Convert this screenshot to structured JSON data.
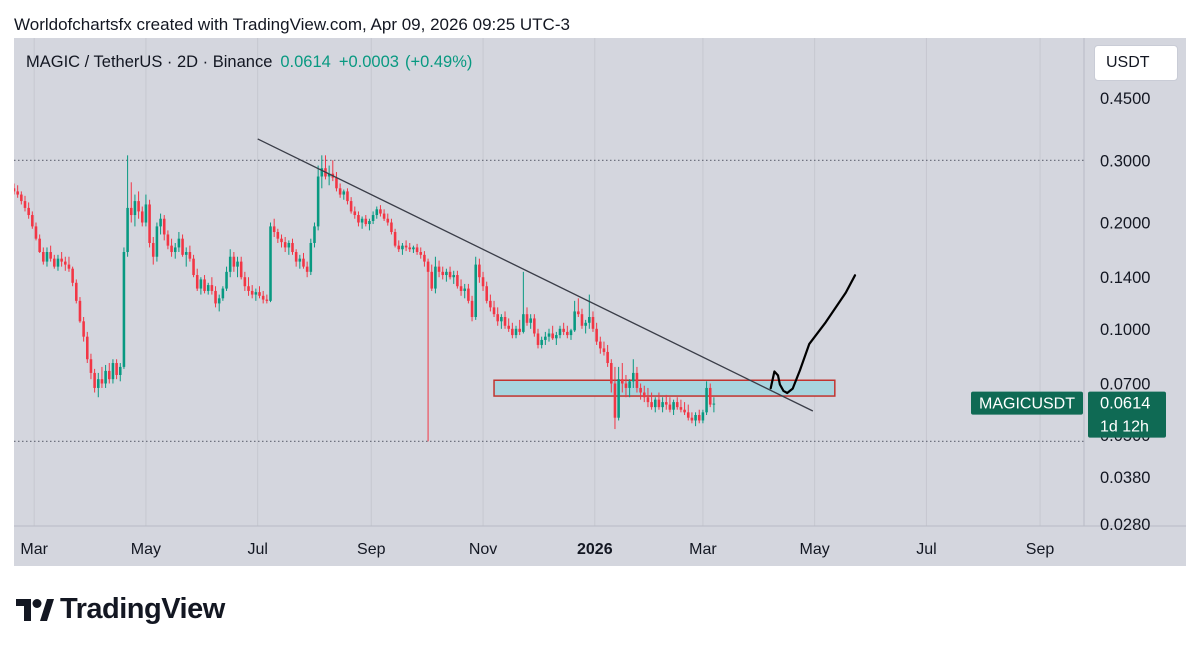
{
  "attribution": "Worldofchartsfx created with TradingView.com, Apr 09, 2026 09:25 UTC-3",
  "legend": {
    "symbol": "MAGIC / TetherUS · 2D · Binance",
    "last": "0.0614",
    "change": "+0.0003",
    "change_pct": "(+0.49%)"
  },
  "currency_button": "USDT",
  "brand": "TradingView",
  "colors": {
    "up": "#089981",
    "down": "#f23645",
    "background": "#d4d6de",
    "zone_fill": "#a8d4de",
    "zone_border": "#c2342f",
    "price_tag": "#0f6a54"
  },
  "chart_data": {
    "type": "candlestick",
    "scale": "log",
    "x_ticks": [
      "Mar",
      "May",
      "Jul",
      "Sep",
      "Nov",
      "2026",
      "Mar",
      "May",
      "Jul",
      "Sep"
    ],
    "y_ticks": [
      "0.4500",
      "0.3000",
      "0.2000",
      "0.1400",
      "0.1000",
      "0.0700",
      "0.0500",
      "0.0380",
      "0.0280"
    ],
    "y_tick_values": [
      0.45,
      0.3,
      0.2,
      0.14,
      0.1,
      0.07,
      0.05,
      0.038,
      0.028
    ],
    "ylim": [
      0.028,
      0.52
    ],
    "xlim": [
      "2025-02-18",
      "2026-09-25"
    ],
    "last_price": {
      "symbol": "MAGICUSDT",
      "value": "0.0614",
      "countdown": "1d 12h"
    },
    "reference_levels": [
      0.3,
      0.048
    ],
    "trendline": {
      "from": [
        "2025-07-01",
        0.345
      ],
      "to": [
        "2026-04-30",
        0.0585
      ]
    },
    "support_zone": {
      "from": "2025-11-07",
      "to": "2026-05-12",
      "low": 0.0645,
      "high": 0.0715
    },
    "projection": [
      [
        "2026-04-07",
        0.0679
      ],
      [
        "2026-04-09",
        0.0757
      ],
      [
        "2026-04-11",
        0.0738
      ],
      [
        "2026-04-12",
        0.0695
      ],
      [
        "2026-04-14",
        0.0667
      ],
      [
        "2026-04-16",
        0.0658
      ],
      [
        "2026-04-19",
        0.0677
      ],
      [
        "2026-04-23",
        0.0764
      ],
      [
        "2026-04-28",
        0.0905
      ],
      [
        "2026-05-07",
        0.1043
      ],
      [
        "2026-05-18",
        0.1266
      ],
      [
        "2026-05-23",
        0.1418
      ]
    ],
    "candles_ohlc_2d": "2025-02-18|0.250,0.258,0.240,0.245;0.245,0.255,0.235,0.240;0.240,0.245,0.225,0.230;0.230,0.238,0.215,0.220;0.220,0.228,0.205,0.210;0.210,0.215,0.192,0.195;0.195,0.200,0.178,0.180;0.180,0.185,0.164,0.165;0.165,0.170,0.152,0.155;0.155,0.170,0.150,0.165;0.165,0.172,0.155,0.158;0.158,0.162,0.148,0.150;0.150,0.162,0.146,0.158;0.158,0.165,0.150,0.155;0.155,0.160,0.146,0.152;0.152,0.160,0.145,0.148;0.148,0.150,0.132,0.135;0.135,0.138,0.118,0.120;0.120,0.123,0.104,0.105;0.105,0.108,0.092,0.095;0.095,0.098,0.080,0.082;0.082,0.085,0.072,0.075;0.075,0.077,0.066,0.068;0.068,0.075,0.064,0.072;0.072,0.078,0.068,0.070;0.070,0.079,0.068,0.076;0.076,0.080,0.070,0.072;0.072,0.082,0.070,0.080;0.080,0.082,0.072,0.074;0.074,0.080,0.071,0.078;0.078,0.170,0.077,0.165;0.165,0.310,0.160,0.220;0.220,0.260,0.200,0.210;0.210,0.240,0.195,0.230;0.230,0.245,0.205,0.215;0.215,0.222,0.195,0.200;0.200,0.240,0.195,0.225;0.225,0.232,0.170,0.175;0.175,0.182,0.152,0.160;0.160,0.200,0.155,0.195;0.195,0.212,0.185,0.205;0.205,0.210,0.178,0.185;0.185,0.190,0.168,0.172;0.172,0.180,0.160,0.165;0.165,0.175,0.158,0.170;0.170,0.188,0.165,0.180;0.180,0.185,0.160,0.162;0.162,0.170,0.150,0.165;0.165,0.172,0.155,0.158;0.158,0.162,0.140,0.142;0.142,0.148,0.128,0.130;0.130,0.140,0.125,0.138;0.138,0.142,0.126,0.128;0.128,0.135,0.125,0.133;0.133,0.140,0.125,0.128;0.128,0.132,0.115,0.118;0.118,0.125,0.112,0.122;0.122,0.132,0.120,0.130;0.130,0.150,0.128,0.145;0.145,0.168,0.140,0.160;0.160,0.165,0.145,0.150;0.150,0.160,0.140,0.155;0.155,0.160,0.138,0.140;0.140,0.145,0.128,0.132;0.132,0.140,0.124,0.128;0.128,0.133,0.122,0.125;0.125,0.130,0.120,0.127;0.127,0.132,0.122,0.124;0.124,0.128,0.118,0.121;0.121,0.125,0.118,0.120;0.120,0.200,0.119,0.195;0.195,0.205,0.182,0.188;0.188,0.192,0.175,0.180;0.180,0.185,0.170,0.176;0.176,0.182,0.165,0.170;0.170,0.178,0.162,0.175;0.175,0.180,0.162,0.165;0.165,0.168,0.150,0.155;0.155,0.162,0.148,0.158;0.158,0.164,0.148,0.150;0.150,0.155,0.140,0.145;0.145,0.180,0.142,0.175;0.175,0.200,0.170,0.195;0.195,0.290,0.190,0.270;0.270,0.310,0.250,0.285;0.285,0.310,0.265,0.270;0.270,0.290,0.255,0.275;0.275,0.300,0.262,0.268;0.268,0.278,0.245,0.250;0.250,0.258,0.235,0.240;0.240,0.248,0.232,0.245;0.245,0.250,0.225,0.230;0.230,0.236,0.212,0.215;0.215,0.222,0.205,0.210;0.210,0.215,0.195,0.200;0.200,0.208,0.192,0.205;0.205,0.210,0.195,0.198;0.198,0.205,0.190,0.202;0.202,0.215,0.198,0.210;0.210,0.222,0.205,0.218;0.218,0.224,0.208,0.212;0.212,0.218,0.202,0.205;0.205,0.212,0.196,0.200;0.200,0.205,0.185,0.188;0.188,0.192,0.170,0.172;0.172,0.178,0.165,0.168;0.168,0.175,0.162,0.172;0.172,0.178,0.166,0.170;0.170,0.175,0.165,0.168;0.168,0.172,0.164,0.170;0.170,0.174,0.162,0.165;0.165,0.170,0.158,0.162;0.162,0.166,0.150,0.155;0.155,0.158,0.048,0.145;0.145,0.152,0.128,0.130;0.130,0.160,0.126,0.150;0.150,0.156,0.140,0.145;0.145,0.150,0.138,0.142;0.142,0.148,0.136,0.145;0.145,0.150,0.138,0.140;0.140,0.146,0.134,0.142;0.142,0.146,0.130,0.132;0.132,0.138,0.124,0.128;0.128,0.134,0.122,0.130;0.130,0.134,0.118,0.120;0.120,0.124,0.105,0.108;0.108,0.160,0.106,0.152;0.152,0.158,0.135,0.140;0.140,0.145,0.128,0.132;0.132,0.136,0.118,0.120;0.120,0.125,0.112,0.115;0.115,0.120,0.108,0.110;0.110,0.115,0.102,0.105;0.105,0.110,0.100,0.108;0.108,0.112,0.100,0.102;0.102,0.107,0.098,0.100;0.100,0.104,0.094,0.096;0.096,0.102,0.094,0.100;0.100,0.106,0.096,0.098;0.098,0.145,0.097,0.110;0.110,0.115,0.102,0.104;0.104,0.110,0.100,0.107;0.107,0.110,0.095,0.097;0.097,0.100,0.088,0.090;0.090,0.095,0.088,0.093;0.093,0.098,0.090,0.095;0.095,0.100,0.092,0.097;0.097,0.102,0.093,0.094;0.094,0.098,0.090,0.096;0.096,0.102,0.094,0.100;0.100,0.104,0.096,0.098;0.098,0.102,0.094,0.096;0.096,0.100,0.093,0.099;0.099,0.120,0.098,0.112;0.112,0.122,0.108,0.110;0.110,0.114,0.100,0.102;0.102,0.106,0.097,0.104;0.104,0.125,0.100,0.108;0.108,0.112,0.098,0.100;0.100,0.104,0.090,0.092;0.092,0.095,0.085,0.088;0.088,0.092,0.084,0.086;0.086,0.090,0.078,0.080;0.080,0.082,0.066,0.070;0.070,0.078,0.052,0.056;0.056,0.078,0.055,0.072;0.072,0.080,0.066,0.070;0.070,0.074,0.064,0.068;0.068,0.072,0.064,0.071;0.071,0.082,0.068,0.075;0.075,0.078,0.066,0.068;0.068,0.070,0.063,0.066;0.066,0.069,0.062,0.064;0.064,0.068,0.060,0.062;0.062,0.066,0.059,0.060;0.060,0.064,0.058,0.063;0.063,0.066,0.059,0.060;0.060,0.064,0.058,0.062;0.062,0.065,0.059,0.061;0.061,0.064,0.058,0.059;0.059,0.063,0.057,0.062;0.062,0.064,0.059,0.060;0.060,0.063,0.058,0.059;0.059,0.062,0.057,0.058;0.058,0.061,0.055,0.056;0.056,0.058,0.054,0.055;0.055,0.058,0.053,0.057;0.057,0.059,0.054,0.055;0.055,0.059,0.054,0.058;0.058,0.071,0.057,0.068;0.068,0.070,0.060,0.061;0.061,0.064,0.058,0.0614"
  }
}
